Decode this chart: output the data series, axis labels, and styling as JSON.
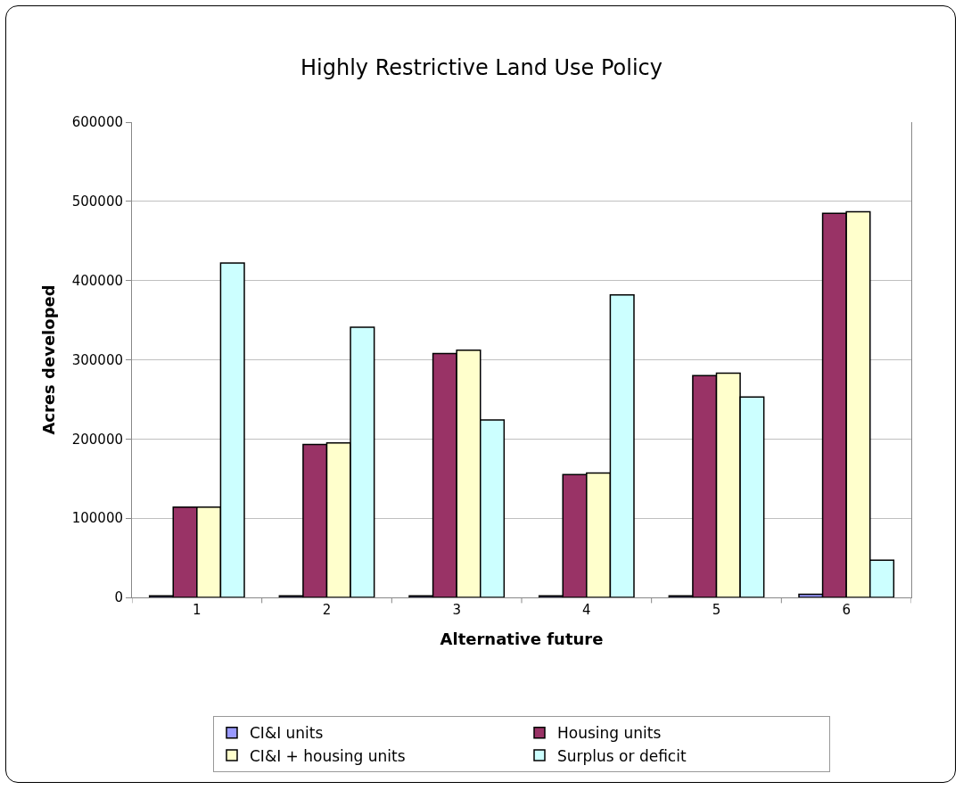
{
  "chart_data": {
    "type": "bar",
    "title": "Highly Restrictive Land Use Policy",
    "xlabel": "Alternative future",
    "ylabel": "Acres developed",
    "categories": [
      "1",
      "2",
      "3",
      "4",
      "5",
      "6"
    ],
    "series": [
      {
        "name": "CI&I units",
        "color": "#9999ff",
        "values": [
          2000,
          2000,
          2000,
          2000,
          2000,
          4000
        ]
      },
      {
        "name": "Housing units",
        "color": "#993366",
        "values": [
          114000,
          193000,
          308000,
          155000,
          280000,
          485000
        ]
      },
      {
        "name": "CI&I + housing units",
        "color": "#ffffcc",
        "values": [
          114000,
          195000,
          312000,
          157000,
          283000,
          487000
        ]
      },
      {
        "name": "Surplus or deficit",
        "color": "#ccffff",
        "values": [
          422000,
          341000,
          224000,
          382000,
          253000,
          47000
        ]
      }
    ],
    "ylim": [
      0,
      600000
    ],
    "yticks": [
      0,
      100000,
      200000,
      300000,
      400000,
      500000,
      600000
    ],
    "grid": "y",
    "legend": "bottom"
  }
}
